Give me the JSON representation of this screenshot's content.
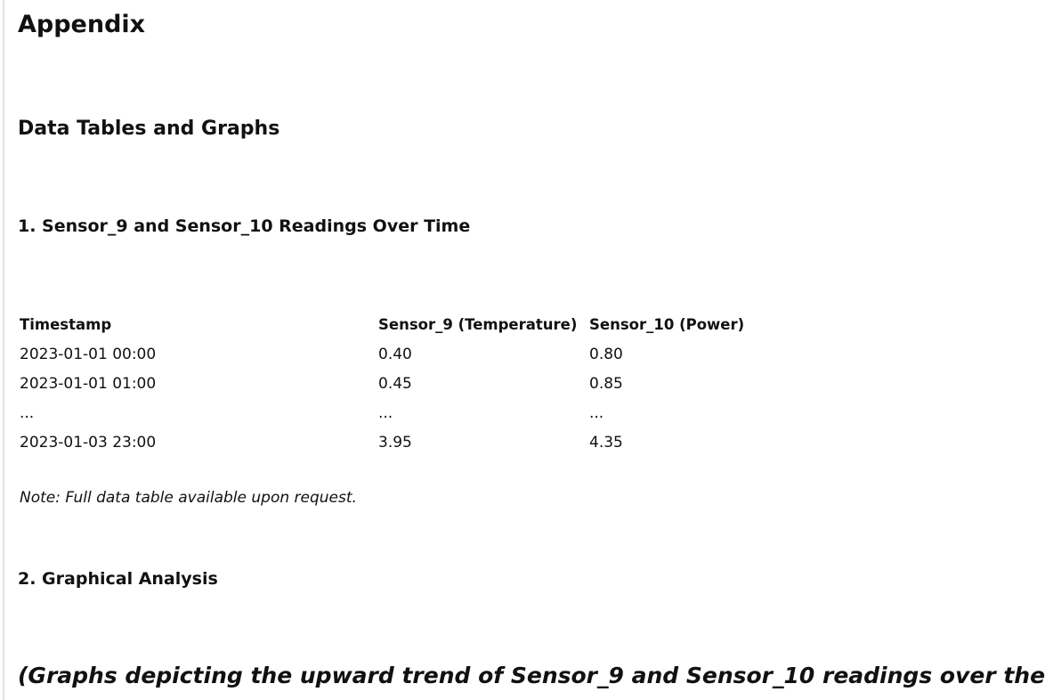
{
  "headings": {
    "title": "Appendix",
    "section": "Data Tables and Graphs",
    "subsection_1": "1. Sensor_9 and Sensor_10 Readings Over Time",
    "subsection_2": "2. Graphical Analysis"
  },
  "table": {
    "columns": [
      "Timestamp",
      "Sensor_9 (Temperature)",
      "Sensor_10 (Power)"
    ],
    "rows": [
      [
        "2023-01-01 00:00",
        "0.40",
        "0.80"
      ],
      [
        "2023-01-01 01:00",
        "0.45",
        "0.85"
      ],
      [
        "...",
        "...",
        "..."
      ],
      [
        "2023-01-03 23:00",
        "3.95",
        "4.35"
      ]
    ]
  },
  "note": "Note: Full data table available upon request.",
  "graph_caption": "(Graphs depicting the upward trend of Sensor_9 and Sensor_10 readings over the"
}
